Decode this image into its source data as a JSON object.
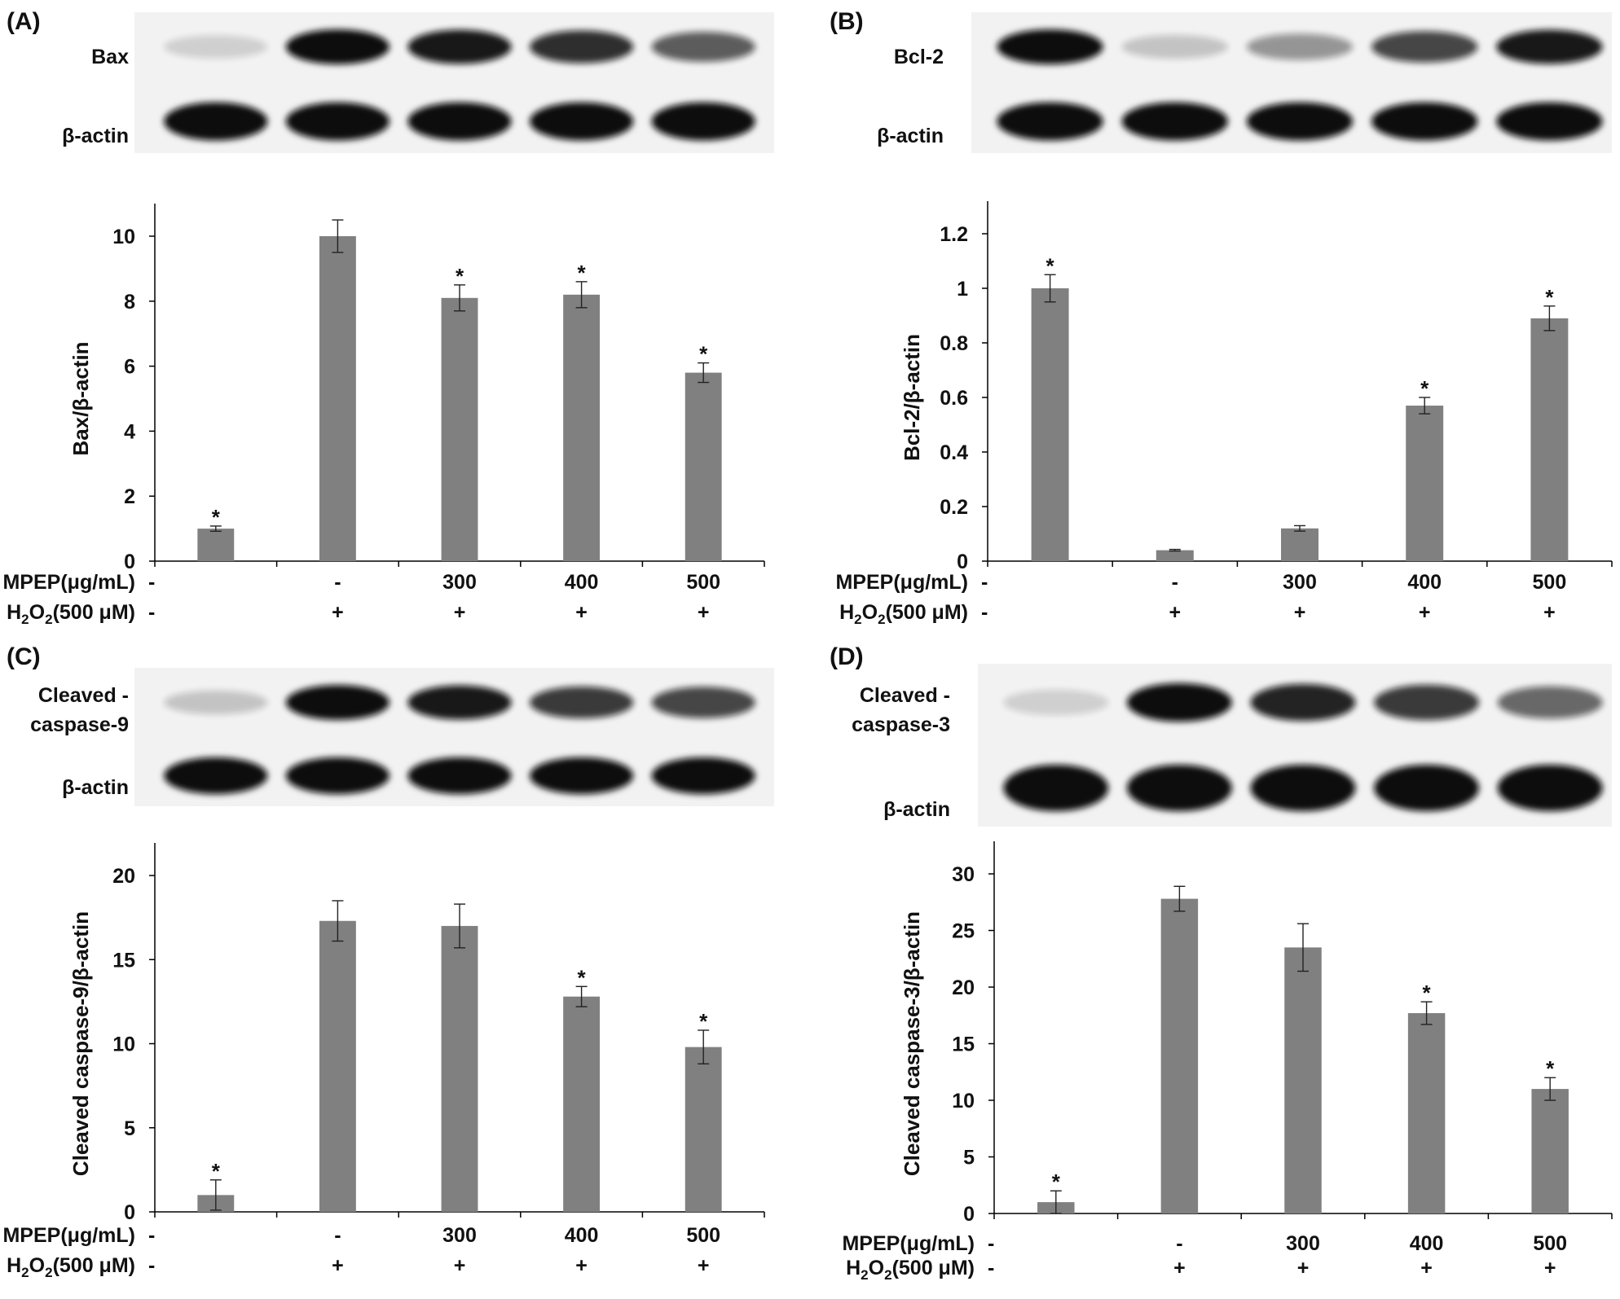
{
  "treatments": {
    "mpep_label": "MPEP(μg/mL)",
    "h2o2_label_main": "H",
    "h2o2_label_sub": "2",
    "h2o2_label_o": "O",
    "h2o2_label_sub2": "2",
    "h2o2_label_rest": "(500 μM)",
    "mpep_values": [
      "-",
      "-",
      "300",
      "400",
      "500"
    ],
    "h2o2_values": [
      "-",
      "+",
      "+",
      "+",
      "+"
    ]
  },
  "colors": {
    "bar": "#808080",
    "axis": "#000000",
    "band": "#0a0a0a"
  },
  "chart_data": [
    {
      "panel_label": "(A)",
      "type": "bar",
      "blot_labels": [
        "Bax",
        "β-actin"
      ],
      "categories": [
        "1",
        "2",
        "3",
        "4",
        "5"
      ],
      "values": [
        1.0,
        10.0,
        8.1,
        8.2,
        5.8
      ],
      "errors": [
        0.08,
        0.5,
        0.4,
        0.4,
        0.3
      ],
      "significant": [
        true,
        false,
        true,
        true,
        true
      ],
      "ylabel": "Bax/β-actin",
      "ylim": [
        0,
        10
      ],
      "yticks": [
        "0",
        "2",
        "4",
        "6",
        "8",
        "10"
      ],
      "ytick_values": [
        0,
        2,
        4,
        6,
        8,
        10
      ]
    },
    {
      "panel_label": "(B)",
      "type": "bar",
      "blot_labels": [
        "Bcl-2",
        "β-actin"
      ],
      "categories": [
        "1",
        "2",
        "3",
        "4",
        "5"
      ],
      "values": [
        1.0,
        0.04,
        0.12,
        0.57,
        0.89
      ],
      "errors": [
        0.05,
        0.003,
        0.01,
        0.03,
        0.045
      ],
      "significant": [
        true,
        false,
        false,
        true,
        true
      ],
      "ylabel": "Bcl-2/β-actin",
      "ylim": [
        0,
        1.2
      ],
      "yticks": [
        "0",
        "0.2",
        "0.4",
        "0.6",
        "0.8",
        "1",
        "1.2"
      ],
      "ytick_values": [
        0,
        0.2,
        0.4,
        0.6,
        0.8,
        1.0,
        1.2
      ]
    },
    {
      "panel_label": "(C)",
      "type": "bar",
      "blot_labels": [
        "Cleaved -",
        "caspase-9",
        "β-actin"
      ],
      "categories": [
        "1",
        "2",
        "3",
        "4",
        "5"
      ],
      "values": [
        1.0,
        17.3,
        17.0,
        12.8,
        9.8
      ],
      "errors": [
        0.9,
        1.2,
        1.3,
        0.6,
        1.0
      ],
      "significant": [
        true,
        false,
        false,
        true,
        true
      ],
      "ylabel": "Cleaved caspase-9/β-actin",
      "ylim": [
        0,
        20
      ],
      "yticks": [
        "0",
        "5",
        "10",
        "15",
        "20"
      ],
      "ytick_values": [
        0,
        5,
        10,
        15,
        20
      ]
    },
    {
      "panel_label": "(D)",
      "type": "bar",
      "blot_labels": [
        "Cleaved -",
        "caspase-3",
        "β-actin"
      ],
      "categories": [
        "1",
        "2",
        "3",
        "4",
        "5"
      ],
      "values": [
        1.0,
        27.8,
        23.5,
        17.7,
        11.0
      ],
      "errors": [
        1.0,
        1.1,
        2.1,
        1.0,
        1.0
      ],
      "significant": [
        true,
        false,
        false,
        true,
        true
      ],
      "ylabel": "Cleaved caspase-3/β-actin",
      "ylim": [
        0,
        30
      ],
      "yticks": [
        "0",
        "5",
        "10",
        "15",
        "20",
        "25",
        "30"
      ],
      "ytick_values": [
        0,
        5,
        10,
        15,
        20,
        25,
        30
      ]
    }
  ]
}
